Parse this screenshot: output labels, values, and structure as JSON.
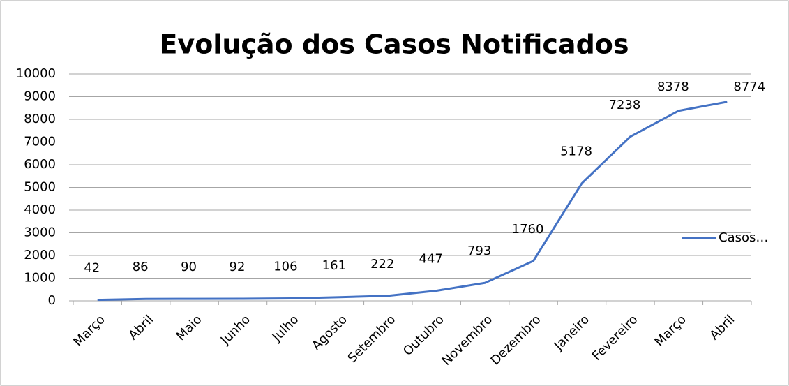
{
  "chart_data": {
    "type": "line",
    "title": "Evolução dos Casos Notificados",
    "categories": [
      "Março",
      "Abril",
      "Maio",
      "Junho",
      "Julho",
      "Agosto",
      "Setembro",
      "Outubro",
      "Novembro",
      "Dezembro",
      "Janeiro",
      "Fevereiro",
      "Março",
      "Abril"
    ],
    "series": [
      {
        "name": "Casos…",
        "color": "#4472c4",
        "values": [
          42,
          86,
          90,
          92,
          106,
          161,
          222,
          447,
          793,
          1760,
          5178,
          7238,
          8378,
          8774
        ]
      }
    ],
    "ylim": [
      0,
      10000
    ],
    "yticks": [
      0,
      1000,
      2000,
      3000,
      4000,
      5000,
      6000,
      7000,
      8000,
      9000,
      10000
    ],
    "grid": true,
    "legend": "right"
  }
}
